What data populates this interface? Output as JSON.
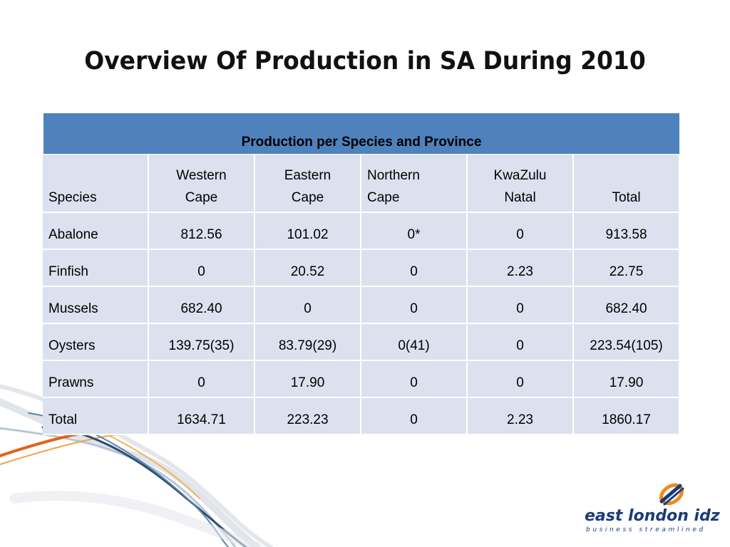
{
  "slide": {
    "title": "Overview Of Production in SA During 2010"
  },
  "table": {
    "caption": "Production per Species and Province",
    "headers": [
      {
        "line1": "",
        "line2": "Species"
      },
      {
        "line1": "Western",
        "line2": "Cape"
      },
      {
        "line1": "Eastern",
        "line2": "Cape"
      },
      {
        "line1": "Northern",
        "line2": "Cape"
      },
      {
        "line1": "KwaZulu",
        "line2": "Natal"
      },
      {
        "line1": "",
        "line2": "Total"
      }
    ],
    "rows": [
      [
        "Abalone",
        "812.56",
        "101.02",
        "0*",
        "0",
        "913.58"
      ],
      [
        "Finfish",
        "0",
        "20.52",
        "0",
        "2.23",
        "22.75"
      ],
      [
        "Mussels",
        "682.40",
        "0",
        "0",
        "0",
        "682.40"
      ],
      [
        "Oysters",
        "139.75(35)",
        "83.79(29)",
        "0(41)",
        "0",
        "223.54(105)"
      ],
      [
        "Prawns",
        "0",
        "17.90",
        "0",
        "0",
        "17.90"
      ],
      [
        "Total",
        "1634.71",
        "223.23",
        "0",
        "2.23",
        "1860.17"
      ]
    ]
  },
  "logo": {
    "name": "east london idz",
    "tagline": "business streamlined"
  },
  "colors": {
    "header_blue": "#4f81bd",
    "cell_fill": "#dce1ef",
    "logo_blue": "#1b3b78",
    "logo_orange": "#f08a1c"
  }
}
